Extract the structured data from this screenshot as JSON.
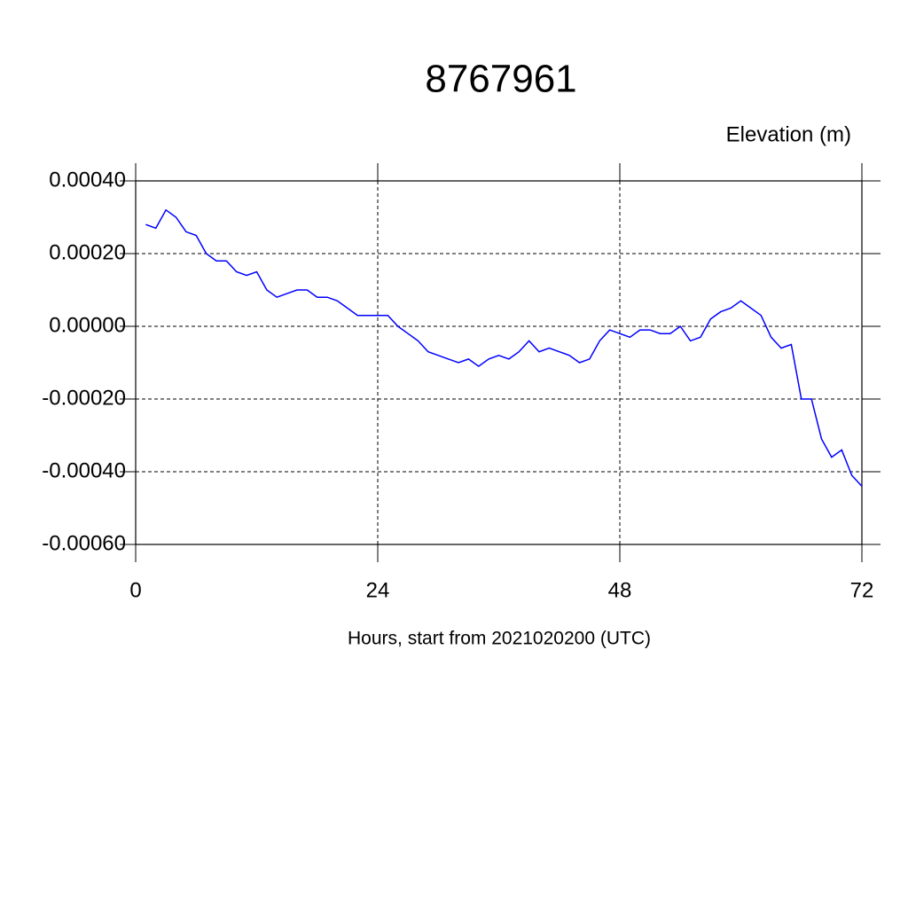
{
  "chart_data": {
    "type": "line",
    "title": "8767961",
    "subtitle": "Elevation (m)",
    "x_label": "Hours, start from 2021020200 (UTC)",
    "x": [
      1,
      2,
      3,
      4,
      5,
      6,
      7,
      8,
      9,
      10,
      11,
      12,
      13,
      14,
      15,
      16,
      17,
      18,
      19,
      20,
      21,
      22,
      23,
      24,
      25,
      26,
      27,
      28,
      29,
      30,
      31,
      32,
      33,
      34,
      35,
      36,
      37,
      38,
      39,
      40,
      41,
      42,
      43,
      44,
      45,
      46,
      47,
      48,
      49,
      50,
      51,
      52,
      53,
      54,
      55,
      56,
      57,
      58,
      59,
      60,
      61,
      62,
      63,
      64,
      65,
      66,
      67,
      68,
      69,
      70,
      71,
      72
    ],
    "series": [
      {
        "color": "#0000ff",
        "values": [
          0.00028,
          0.00027,
          0.00032,
          0.0003,
          0.00026,
          0.00025,
          0.0002,
          0.00018,
          0.00018,
          0.00015,
          0.00014,
          0.00015,
          0.0001,
          8e-05,
          9e-05,
          0.0001,
          0.0001,
          8e-05,
          8e-05,
          7e-05,
          5e-05,
          3e-05,
          3e-05,
          3e-05,
          3e-05,
          0,
          -2e-05,
          -4e-05,
          -7e-05,
          -8e-05,
          -9e-05,
          -0.0001,
          -9e-05,
          -0.00011,
          -9e-05,
          -8e-05,
          -9e-05,
          -7e-05,
          -4e-05,
          -7e-05,
          -6e-05,
          -7e-05,
          -8e-05,
          -0.0001,
          -9e-05,
          -4e-05,
          -1e-05,
          -2e-05,
          -3e-05,
          -1e-05,
          -1e-05,
          -2e-05,
          -2e-05,
          0,
          -4e-05,
          -3e-05,
          2e-05,
          4e-05,
          5e-05,
          7e-05,
          5e-05,
          3e-05,
          -3e-05,
          -6e-05,
          -5e-05,
          -0.0002,
          -0.0002,
          -0.00031,
          -0.00036,
          -0.00034,
          -0.00041,
          -0.00044
        ]
      }
    ],
    "xlim": [
      0,
      72
    ],
    "xticks": [
      0,
      24,
      48,
      72
    ],
    "ylim": [
      -0.0006,
      0.0004
    ],
    "yticks": [
      {
        "value": -0.0006,
        "label": "-0.00060"
      },
      {
        "value": -0.0004,
        "label": "-0.00040"
      },
      {
        "value": -0.0002,
        "label": "-0.00020"
      },
      {
        "value": 0,
        "label": "0.00000"
      },
      {
        "value": 0.0002,
        "label": "0.00020"
      },
      {
        "value": 0.0004,
        "label": "0.00040"
      }
    ],
    "grid": true
  }
}
